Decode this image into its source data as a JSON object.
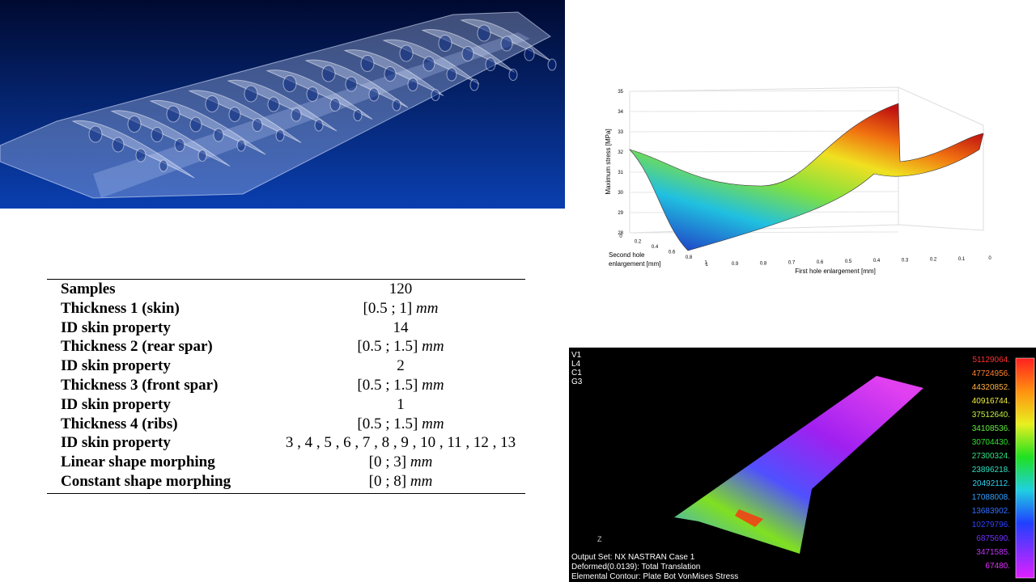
{
  "surface_plot": {
    "z_label": "Maximum stress [MPa]",
    "x_label": "First hole enlargement [mm]",
    "y_label": [
      "Second hole",
      "enlargement [mm]"
    ],
    "z_ticks": [
      "35",
      "34",
      "33",
      "32",
      "31",
      "30",
      "29",
      "28"
    ],
    "x_ticks": [
      "1",
      "0.9",
      "0.8",
      "0.7",
      "0.6",
      "0.5",
      "0.4",
      "0.3",
      "0.2",
      "0.1",
      "0"
    ],
    "y_ticks": [
      "0",
      "0.2",
      "0.4",
      "0.6",
      "0.8",
      "1"
    ]
  },
  "table": {
    "rows": [
      {
        "label": "Samples",
        "value": "120"
      },
      {
        "label": "Thickness 1 (skin)",
        "value": "[0.5 ; 1]",
        "unit": "mm"
      },
      {
        "label": "ID skin property",
        "value": "14"
      },
      {
        "label": "Thickness 2 (rear spar)",
        "value": "[0.5 ; 1.5]",
        "unit": "mm"
      },
      {
        "label": "ID skin property",
        "value": "2"
      },
      {
        "label": "Thickness 3 (front spar)",
        "value": "[0.5 ; 1.5]",
        "unit": "mm"
      },
      {
        "label": "ID skin property",
        "value": "1"
      },
      {
        "label": "Thickness 4 (ribs)",
        "value": "[0.5 ; 1.5]",
        "unit": "mm"
      },
      {
        "label": "ID skin property",
        "value": "3 , 4 , 5 , 6 , 7 , 8 , 9 , 10 , 11 , 12 , 13"
      },
      {
        "label": "Linear shape morphing",
        "value": "[0 ; 3]",
        "unit": "mm"
      },
      {
        "label": "Constant shape morphing",
        "value": "[0 ; 8]",
        "unit": "mm"
      }
    ]
  },
  "fem_result": {
    "corner_labels": [
      "V1",
      "L4",
      "C1",
      "G3"
    ],
    "legend_values": [
      "51129064.",
      "47724956.",
      "44320852.",
      "40916744.",
      "37512640.",
      "34108536.",
      "30704430.",
      "27300324.",
      "23896218.",
      "20492112.",
      "17088008.",
      "13683902.",
      "10279796.",
      "6875690.",
      "3471585.",
      "67480."
    ],
    "axis_label": "Z",
    "footer": [
      "Output Set: NX NASTRAN Case 1",
      "Deformed(0.0139): Total Translation",
      "Elemental Contour: Plate Bot VonMises Stress"
    ]
  }
}
